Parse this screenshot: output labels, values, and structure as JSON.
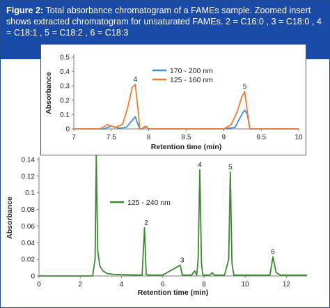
{
  "figure": {
    "label": "Figure 2:",
    "caption": "Total absorbance chromatogram of a FAMEs sample. Zoomed insert shows extracted chromatogram for unsaturated FAMEs. 2 = C16:0 , 3 = C18:0 , 4 = C18:1 , 5 = C18:2 , 6 = C18:3"
  },
  "colors": {
    "caption_bg": "#1a4ba8",
    "main_series": "#3a8a2e",
    "inset_blue": "#3a8fd6",
    "inset_orange": "#ee7b32"
  },
  "chart_data": [
    {
      "type": "line",
      "xlabel": "Retention time (min)",
      "ylabel": "Absorbance",
      "xlim": [
        0,
        13
      ],
      "ylim": [
        0,
        0.14
      ],
      "xticks": [
        0,
        2,
        4,
        6,
        8,
        10,
        12
      ],
      "yticks": [
        0,
        0.02,
        0.04,
        0.06,
        0.08,
        0.1,
        0.12,
        0.14
      ],
      "legend_position": "left-center",
      "series": [
        {
          "name": "125 - 240 nm",
          "x": [
            0,
            2.6,
            2.72,
            2.78,
            2.85,
            2.95,
            3.1,
            3.3,
            3.6,
            4.0,
            5.0,
            5.12,
            5.2,
            5.28,
            6.0,
            6.85,
            6.95,
            7.05,
            7.4,
            7.55,
            7.65,
            7.72,
            7.8,
            7.88,
            7.95,
            8.3,
            8.4,
            8.5,
            9.0,
            9.2,
            9.28,
            9.36,
            9.45,
            10.0,
            11.2,
            11.35,
            11.5,
            11.7,
            12.5,
            13
          ],
          "y": [
            0.0,
            0.0,
            0.02,
            0.145,
            0.03,
            0.012,
            0.006,
            0.003,
            0.002,
            0.0015,
            0.001,
            0.058,
            0.002,
            0.001,
            0.001,
            0.013,
            0.001,
            0.001,
            0.001,
            0.006,
            0.001,
            0.02,
            0.128,
            0.015,
            0.001,
            0.001,
            0.004,
            0.001,
            0.001,
            0.02,
            0.125,
            0.015,
            0.001,
            0.001,
            0.001,
            0.023,
            0.004,
            0.001,
            0.001,
            0.001
          ]
        }
      ],
      "annotations": [
        {
          "text": "2",
          "x": 5.2,
          "y": 0.058
        },
        {
          "text": "3",
          "x": 6.95,
          "y": 0.013
        },
        {
          "text": "4",
          "x": 7.8,
          "y": 0.128
        },
        {
          "text": "5",
          "x": 9.28,
          "y": 0.125
        },
        {
          "text": "6",
          "x": 11.35,
          "y": 0.023
        }
      ]
    },
    {
      "type": "line",
      "xlabel": "Retention time (min)",
      "ylabel": "Absorbance",
      "xlim": [
        7,
        10
      ],
      "ylim": [
        0,
        0.5
      ],
      "xticks": [
        7,
        7.5,
        8,
        8.5,
        9,
        9.5,
        10
      ],
      "yticks": [
        0,
        0.1,
        0.2,
        0.3,
        0.4,
        0.5
      ],
      "legend_position": "top-center",
      "series": [
        {
          "name": "170 - 200 nm",
          "x": [
            7.0,
            7.4,
            7.5,
            7.6,
            7.7,
            7.78,
            7.82,
            7.85,
            7.88,
            7.9,
            7.96,
            8.0,
            9.0,
            9.15,
            9.2,
            9.25,
            9.28,
            9.31,
            9.35,
            10.0
          ],
          "y": [
            0.0,
            0.0,
            0.02,
            0.005,
            0.01,
            0.06,
            0.085,
            0.04,
            0.0,
            0.0,
            0.015,
            0.0,
            0.0,
            0.01,
            0.06,
            0.11,
            0.13,
            0.11,
            0.0,
            0.0
          ]
        },
        {
          "name": "125 - 160 nm",
          "x": [
            7.0,
            7.35,
            7.45,
            7.55,
            7.65,
            7.72,
            7.78,
            7.82,
            7.86,
            7.88,
            7.9,
            7.96,
            8.0,
            9.0,
            9.1,
            9.18,
            9.24,
            9.28,
            9.31,
            9.35,
            10.0
          ],
          "y": [
            0.0,
            0.0,
            0.03,
            0.01,
            0.03,
            0.15,
            0.29,
            0.31,
            0.12,
            0.0,
            0.0,
            0.02,
            0.0,
            0.0,
            0.03,
            0.12,
            0.22,
            0.26,
            0.14,
            0.0,
            0.0
          ]
        }
      ],
      "annotations": [
        {
          "text": "4",
          "x": 7.82,
          "y": 0.31
        },
        {
          "text": "5",
          "x": 9.28,
          "y": 0.26
        }
      ]
    }
  ]
}
